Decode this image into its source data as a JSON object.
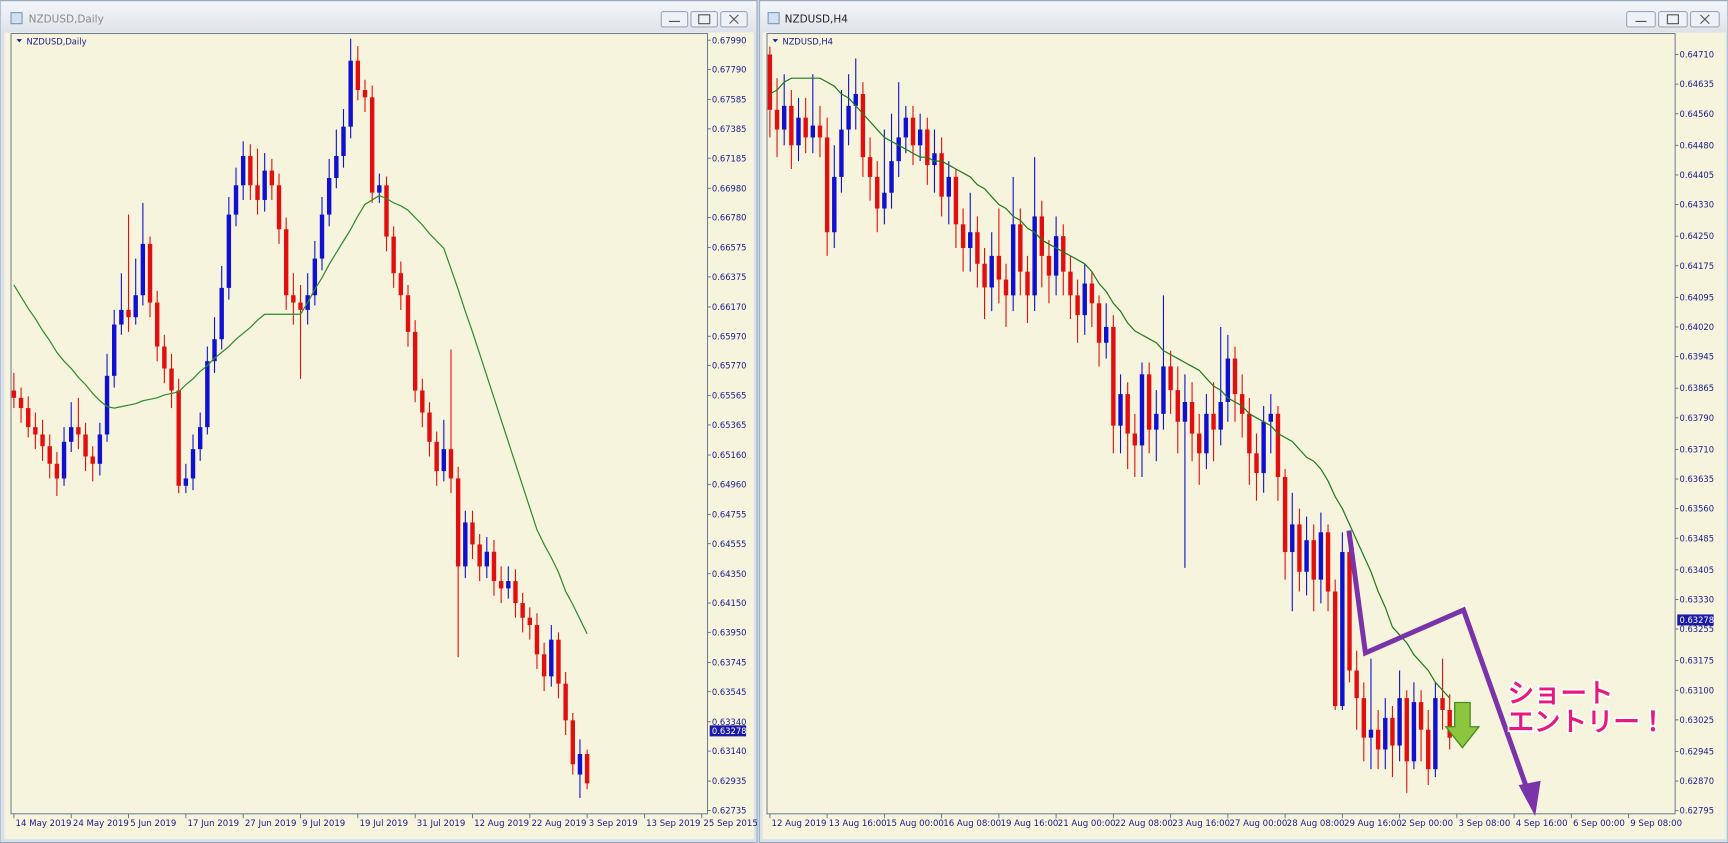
{
  "windows": [
    {
      "title": "NZDUSD,Daily"
    },
    {
      "title": "NZDUSD,H4"
    }
  ],
  "chart_data": [
    {
      "type": "candlestick",
      "title": "NZDUSD,Daily",
      "up_color": "#1010d0",
      "down_color": "#e01010",
      "ma_color": "#2e8b2e",
      "xlim": [
        -0.4,
        96.8
      ],
      "xticks": [
        {
          "value": 0,
          "label": "14 May 2019"
        },
        {
          "value": 8,
          "label": "24 May 2019"
        },
        {
          "value": 16,
          "label": "5 Jun 2019"
        },
        {
          "value": 24,
          "label": "17 Jun 2019"
        },
        {
          "value": 32,
          "label": "27 Jun 2019"
        },
        {
          "value": 40,
          "label": "9 Jul 2019"
        },
        {
          "value": 48,
          "label": "19 Jul 2019"
        },
        {
          "value": 56,
          "label": "31 Jul 2019"
        },
        {
          "value": 64,
          "label": "12 Aug 2019"
        },
        {
          "value": 72,
          "label": "22 Aug 2019"
        },
        {
          "value": 80,
          "label": "3 Sep 2019"
        },
        {
          "value": 88,
          "label": "13 Sep 2019"
        },
        {
          "value": 96,
          "label": "25 Sep 2015"
        }
      ],
      "ylim": [
        0.62712,
        0.68035
      ],
      "yticks": [
        {
          "value": 0.6799,
          "label": "0.67990"
        },
        {
          "value": 0.6779,
          "label": "0.67790"
        },
        0.67585,
        0.67385,
        0.67185,
        {
          "value": 0.6698,
          "label": "0.66980"
        },
        {
          "value": 0.6678,
          "label": "0.66780"
        },
        0.66575,
        0.66375,
        {
          "value": 0.6617,
          "label": "0.66170"
        },
        {
          "value": 0.6597,
          "label": "0.65970"
        },
        {
          "value": 0.6577,
          "label": "0.65770"
        },
        0.65565,
        0.65365,
        {
          "value": 0.6516,
          "label": "0.65160"
        },
        {
          "value": 0.6496,
          "label": "0.64960"
        },
        0.64755,
        0.64555,
        {
          "value": 0.6435,
          "label": "0.64350"
        },
        {
          "value": 0.6415,
          "label": "0.64150"
        },
        {
          "value": 0.6395,
          "label": "0.63950"
        },
        0.63745,
        0.63545,
        {
          "value": 0.6334,
          "label": "0.63340"
        },
        {
          "value": 0.6314,
          "label": "0.63140"
        },
        0.62935,
        0.62735
      ],
      "current_price": 0.63278,
      "open": [
        0.656,
        0.6555,
        0.6548,
        0.6535,
        0.653,
        0.6522,
        0.651,
        0.65,
        0.6525,
        0.6535,
        0.653,
        0.6515,
        0.651,
        0.653,
        0.657,
        0.6605,
        0.6615,
        0.661,
        0.6625,
        0.666,
        0.662,
        0.659,
        0.6575,
        0.656,
        0.6495,
        0.65,
        0.652,
        0.6535,
        0.658,
        0.6595,
        0.663,
        0.668,
        0.67,
        0.672,
        0.67,
        0.669,
        0.671,
        0.67,
        0.667,
        0.6625,
        0.662,
        0.6615,
        0.6625,
        0.665,
        0.668,
        0.6705,
        0.672,
        0.674,
        0.6785,
        0.6765,
        0.676,
        0.6695,
        0.67,
        0.6665,
        0.664,
        0.6625,
        0.66,
        0.656,
        0.6545,
        0.6525,
        0.6505,
        0.652,
        0.65,
        0.644,
        0.647,
        0.6455,
        0.644,
        0.645,
        0.643,
        0.6425,
        0.643,
        0.6415,
        0.6405,
        0.64,
        0.638,
        0.6365,
        0.639,
        0.636,
        0.6335,
        0.6298,
        0.6312
      ],
      "high": [
        0.6572,
        0.6562,
        0.6556,
        0.6545,
        0.654,
        0.653,
        0.6518,
        0.6535,
        0.6552,
        0.6555,
        0.6538,
        0.6522,
        0.6538,
        0.6585,
        0.6615,
        0.664,
        0.668,
        0.665,
        0.6688,
        0.6665,
        0.6628,
        0.6598,
        0.6585,
        0.6568,
        0.651,
        0.653,
        0.6545,
        0.659,
        0.661,
        0.6645,
        0.6692,
        0.6712,
        0.673,
        0.6728,
        0.6725,
        0.6722,
        0.6718,
        0.6708,
        0.6678,
        0.664,
        0.6632,
        0.664,
        0.6662,
        0.6692,
        0.6718,
        0.6738,
        0.6752,
        0.68,
        0.6795,
        0.6772,
        0.6768,
        0.6708,
        0.6706,
        0.6672,
        0.6648,
        0.6632,
        0.6608,
        0.6568,
        0.6552,
        0.6532,
        0.654,
        0.6588,
        0.6508,
        0.6478,
        0.6478,
        0.6462,
        0.646,
        0.6458,
        0.644,
        0.644,
        0.6438,
        0.6422,
        0.6412,
        0.6408,
        0.6388,
        0.64,
        0.6395,
        0.6368,
        0.634,
        0.6322,
        0.6315
      ],
      "low": [
        0.6548,
        0.6538,
        0.6528,
        0.652,
        0.6512,
        0.65,
        0.6488,
        0.6495,
        0.6518,
        0.652,
        0.6505,
        0.6498,
        0.6502,
        0.6525,
        0.6562,
        0.6598,
        0.66,
        0.6605,
        0.6618,
        0.661,
        0.658,
        0.6565,
        0.6548,
        0.649,
        0.649,
        0.6492,
        0.6512,
        0.653,
        0.6572,
        0.6588,
        0.6622,
        0.6672,
        0.669,
        0.669,
        0.668,
        0.6682,
        0.669,
        0.666,
        0.6615,
        0.6605,
        0.6568,
        0.6605,
        0.6618,
        0.6642,
        0.6672,
        0.6698,
        0.6712,
        0.6732,
        0.6758,
        0.675,
        0.6688,
        0.6688,
        0.6655,
        0.663,
        0.6615,
        0.659,
        0.6552,
        0.6535,
        0.6515,
        0.6495,
        0.6498,
        0.649,
        0.6378,
        0.6432,
        0.6445,
        0.643,
        0.6432,
        0.642,
        0.6415,
        0.6418,
        0.6405,
        0.6395,
        0.639,
        0.637,
        0.6355,
        0.6358,
        0.635,
        0.6325,
        0.6298,
        0.6282,
        0.6288
      ],
      "close": [
        0.6555,
        0.6548,
        0.6535,
        0.653,
        0.6522,
        0.651,
        0.65,
        0.6525,
        0.6535,
        0.653,
        0.6515,
        0.651,
        0.653,
        0.657,
        0.6605,
        0.6615,
        0.661,
        0.6625,
        0.666,
        0.662,
        0.659,
        0.6575,
        0.656,
        0.6495,
        0.65,
        0.652,
        0.6535,
        0.658,
        0.6595,
        0.663,
        0.668,
        0.67,
        0.672,
        0.67,
        0.669,
        0.671,
        0.67,
        0.667,
        0.6625,
        0.662,
        0.6615,
        0.6625,
        0.665,
        0.668,
        0.6705,
        0.672,
        0.674,
        0.6785,
        0.6765,
        0.676,
        0.6695,
        0.67,
        0.6665,
        0.664,
        0.6625,
        0.66,
        0.656,
        0.6545,
        0.6525,
        0.6505,
        0.652,
        0.65,
        0.644,
        0.647,
        0.6455,
        0.644,
        0.645,
        0.643,
        0.6425,
        0.643,
        0.6415,
        0.6405,
        0.64,
        0.638,
        0.6365,
        0.639,
        0.636,
        0.6335,
        0.6305,
        0.6312,
        0.6292
      ],
      "ma_values": [
        0.6632,
        0.6624,
        0.6616,
        0.6609,
        0.6601,
        0.6594,
        0.6586,
        0.658,
        0.6575,
        0.6569,
        0.6564,
        0.6558,
        0.6553,
        0.6549,
        0.6548,
        0.6549,
        0.655,
        0.6551,
        0.6553,
        0.6554,
        0.6555,
        0.6557,
        0.6558,
        0.6559,
        0.6564,
        0.6568,
        0.6573,
        0.6577,
        0.6582,
        0.6586,
        0.659,
        0.6595,
        0.6599,
        0.6603,
        0.6608,
        0.6612,
        0.6612,
        0.6612,
        0.6612,
        0.6612,
        0.6612,
        0.662,
        0.6629,
        0.6637,
        0.6646,
        0.6654,
        0.6662,
        0.667,
        0.6679,
        0.6687,
        0.669,
        0.6693,
        0.6691,
        0.6688,
        0.6686,
        0.6683,
        0.6678,
        0.6673,
        0.6667,
        0.6662,
        0.6657,
        0.6643,
        0.6629,
        0.6614,
        0.66,
        0.6585,
        0.657,
        0.6555,
        0.654,
        0.6525,
        0.651,
        0.6495,
        0.648,
        0.6465,
        0.6455,
        0.6446,
        0.6436,
        0.6423,
        0.6414,
        0.6404,
        0.6394
      ]
    },
    {
      "type": "candlestick",
      "title": "NZDUSD,H4",
      "up_color": "#1010d0",
      "down_color": "#e01010",
      "ma_color": "#1f7a1f",
      "xlim": [
        -0.4,
        126.5
      ],
      "xticks": [
        {
          "value": 0,
          "label": "12 Aug 2019"
        },
        {
          "value": 8,
          "label": "13 Aug 16:00"
        },
        {
          "value": 16,
          "label": "15 Aug 00:00"
        },
        {
          "value": 24,
          "label": "16 Aug 08:00"
        },
        {
          "value": 32,
          "label": "19 Aug 16:00"
        },
        {
          "value": 40,
          "label": "21 Aug 00:00"
        },
        {
          "value": 48,
          "label": "22 Aug 08:00"
        },
        {
          "value": 56,
          "label": "23 Aug 16:00"
        },
        {
          "value": 64,
          "label": "27 Aug 00:00"
        },
        {
          "value": 72,
          "label": "28 Aug 08:00"
        },
        {
          "value": 80,
          "label": "29 Aug 16:00"
        },
        {
          "value": 88,
          "label": "2 Sep 00:00"
        },
        {
          "value": 96,
          "label": "3 Sep 08:00"
        },
        {
          "value": 104,
          "label": "4 Sep 16:00"
        },
        {
          "value": 112,
          "label": "6 Sep 00:00"
        },
        {
          "value": 120,
          "label": "9 Sep 08:00"
        }
      ],
      "ylim": [
        0.62787,
        0.64763
      ],
      "yticks": [
        {
          "value": 0.6471,
          "label": "0.64710"
        },
        0.64635,
        {
          "value": 0.6456,
          "label": "0.64560"
        },
        {
          "value": 0.6448,
          "label": "0.64480"
        },
        0.64405,
        {
          "value": 0.6433,
          "label": "0.64330"
        },
        {
          "value": 0.6425,
          "label": "0.64250"
        },
        0.64175,
        0.64095,
        {
          "value": 0.6402,
          "label": "0.64020"
        },
        0.63945,
        0.63865,
        {
          "value": 0.6379,
          "label": "0.63790"
        },
        {
          "value": 0.6371,
          "label": "0.63710"
        },
        0.63635,
        {
          "value": 0.6356,
          "label": "0.63560"
        },
        0.63485,
        0.63405,
        {
          "value": 0.6333,
          "label": "0.63330"
        },
        0.63255,
        0.63175,
        {
          "value": 0.631,
          "label": "0.63100"
        },
        0.63025,
        0.62945,
        {
          "value": 0.6287,
          "label": "0.62870"
        },
        0.62795
      ],
      "current_price": 0.63278,
      "annotation": [
        "ショート",
        "エントリー！"
      ],
      "open": [
        0.6471,
        0.6457,
        0.6452,
        0.6458,
        0.6448,
        0.6455,
        0.645,
        0.6453,
        0.645,
        0.6426,
        0.644,
        0.6452,
        0.6458,
        0.6461,
        0.6445,
        0.644,
        0.6432,
        0.6436,
        0.6444,
        0.645,
        0.6455,
        0.6448,
        0.6452,
        0.6443,
        0.6446,
        0.6435,
        0.644,
        0.6428,
        0.6422,
        0.6426,
        0.6418,
        0.6412,
        0.642,
        0.6414,
        0.641,
        0.6428,
        0.6416,
        0.641,
        0.643,
        0.642,
        0.6415,
        0.6425,
        0.6416,
        0.641,
        0.6405,
        0.6413,
        0.6408,
        0.6398,
        0.6402,
        0.6377,
        0.6385,
        0.6375,
        0.6372,
        0.639,
        0.6376,
        0.638,
        0.6392,
        0.6386,
        0.6378,
        0.6383,
        0.6375,
        0.637,
        0.638,
        0.6376,
        0.6383,
        0.6394,
        0.6385,
        0.638,
        0.637,
        0.6365,
        0.6378,
        0.638,
        0.6364,
        0.6345,
        0.6352,
        0.634,
        0.6348,
        0.6338,
        0.635,
        0.6335,
        0.6306,
        0.6345,
        0.6315,
        0.6308,
        0.6298,
        0.63,
        0.6295,
        0.6303,
        0.6296,
        0.6308,
        0.6292,
        0.6307,
        0.63,
        0.629,
        0.6308,
        0.6305
      ],
      "high": [
        0.6473,
        0.6465,
        0.6466,
        0.6462,
        0.646,
        0.646,
        0.6466,
        0.6458,
        0.6455,
        0.6448,
        0.6462,
        0.6466,
        0.647,
        0.6464,
        0.645,
        0.6444,
        0.6452,
        0.6456,
        0.6464,
        0.6458,
        0.6458,
        0.6456,
        0.6455,
        0.6452,
        0.645,
        0.6444,
        0.6442,
        0.6432,
        0.6436,
        0.643,
        0.6422,
        0.6426,
        0.6432,
        0.6418,
        0.644,
        0.6432,
        0.642,
        0.6445,
        0.6434,
        0.6424,
        0.643,
        0.6428,
        0.642,
        0.6414,
        0.6418,
        0.6416,
        0.641,
        0.6408,
        0.6405,
        0.639,
        0.6388,
        0.638,
        0.6393,
        0.6393,
        0.6386,
        0.641,
        0.6396,
        0.6392,
        0.639,
        0.6388,
        0.638,
        0.6385,
        0.6388,
        0.6402,
        0.64,
        0.6397,
        0.639,
        0.6384,
        0.6375,
        0.6382,
        0.6385,
        0.6382,
        0.6366,
        0.636,
        0.6356,
        0.6354,
        0.6352,
        0.6355,
        0.6352,
        0.6338,
        0.635,
        0.6348,
        0.632,
        0.6312,
        0.6318,
        0.6305,
        0.6308,
        0.6306,
        0.6315,
        0.631,
        0.6312,
        0.631,
        0.6305,
        0.6312,
        0.6318,
        0.6309
      ],
      "low": [
        0.645,
        0.6445,
        0.6448,
        0.6442,
        0.6444,
        0.6446,
        0.6446,
        0.6445,
        0.642,
        0.6422,
        0.6436,
        0.6448,
        0.6452,
        0.644,
        0.6434,
        0.6426,
        0.6428,
        0.6432,
        0.644,
        0.6446,
        0.6443,
        0.6444,
        0.6438,
        0.6436,
        0.643,
        0.6428,
        0.6422,
        0.6416,
        0.6416,
        0.6412,
        0.6404,
        0.6406,
        0.6408,
        0.6402,
        0.6406,
        0.641,
        0.6403,
        0.6406,
        0.6412,
        0.6408,
        0.641,
        0.641,
        0.6404,
        0.6398,
        0.64,
        0.6402,
        0.6392,
        0.6394,
        0.637,
        0.637,
        0.6366,
        0.6364,
        0.6364,
        0.637,
        0.6368,
        0.6376,
        0.638,
        0.637,
        0.6341,
        0.6368,
        0.6362,
        0.6366,
        0.6368,
        0.6372,
        0.6378,
        0.6378,
        0.6374,
        0.6362,
        0.6358,
        0.636,
        0.637,
        0.6358,
        0.6338,
        0.633,
        0.6335,
        0.6334,
        0.633,
        0.6332,
        0.633,
        0.6305,
        0.6305,
        0.6312,
        0.63,
        0.6292,
        0.629,
        0.629,
        0.629,
        0.6288,
        0.6292,
        0.6284,
        0.629,
        0.6292,
        0.6286,
        0.6288,
        0.63,
        0.6295
      ],
      "close": [
        0.6457,
        0.6452,
        0.6458,
        0.6448,
        0.6455,
        0.645,
        0.6453,
        0.645,
        0.6426,
        0.644,
        0.6452,
        0.6458,
        0.6461,
        0.6445,
        0.644,
        0.6432,
        0.6436,
        0.6444,
        0.645,
        0.6455,
        0.6448,
        0.6452,
        0.6443,
        0.6446,
        0.6435,
        0.644,
        0.6428,
        0.6422,
        0.6426,
        0.6418,
        0.6412,
        0.642,
        0.6414,
        0.641,
        0.6428,
        0.6416,
        0.641,
        0.643,
        0.642,
        0.6415,
        0.6425,
        0.6416,
        0.641,
        0.6405,
        0.6413,
        0.6408,
        0.6398,
        0.6402,
        0.6377,
        0.6385,
        0.6375,
        0.6372,
        0.639,
        0.6376,
        0.638,
        0.6392,
        0.6386,
        0.6378,
        0.6383,
        0.6375,
        0.637,
        0.638,
        0.6376,
        0.6383,
        0.6394,
        0.6385,
        0.638,
        0.637,
        0.6365,
        0.6378,
        0.638,
        0.6364,
        0.6345,
        0.6352,
        0.634,
        0.6348,
        0.6338,
        0.635,
        0.6335,
        0.6306,
        0.6345,
        0.6315,
        0.6308,
        0.6298,
        0.63,
        0.6295,
        0.6303,
        0.6296,
        0.6308,
        0.6292,
        0.6307,
        0.63,
        0.629,
        0.6308,
        0.6305,
        0.6298
      ],
      "ma_values": [
        0.6461,
        0.6462,
        0.6464,
        0.6465,
        0.6465,
        0.6465,
        0.6465,
        0.6465,
        0.6464,
        0.6463,
        0.6461,
        0.646,
        0.6458,
        0.6456,
        0.6454,
        0.6452,
        0.645,
        0.6449,
        0.6448,
        0.6447,
        0.6446,
        0.6445,
        0.6445,
        0.6444,
        0.6444,
        0.6443,
        0.6442,
        0.6441,
        0.644,
        0.6438,
        0.6437,
        0.6435,
        0.6433,
        0.6432,
        0.643,
        0.6429,
        0.6427,
        0.6426,
        0.6424,
        0.6423,
        0.6422,
        0.6421,
        0.642,
        0.6419,
        0.6418,
        0.6416,
        0.6413,
        0.6411,
        0.6408,
        0.6406,
        0.6403,
        0.6401,
        0.64,
        0.6399,
        0.6398,
        0.6396,
        0.6395,
        0.6394,
        0.6393,
        0.6392,
        0.6391,
        0.6389,
        0.6387,
        0.6386,
        0.6384,
        0.6383,
        0.6382,
        0.638,
        0.6379,
        0.6378,
        0.6377,
        0.6375,
        0.6374,
        0.6373,
        0.6371,
        0.6369,
        0.6368,
        0.6366,
        0.6363,
        0.6359,
        0.6356,
        0.6352,
        0.6348,
        0.6344,
        0.634,
        0.6335,
        0.6331,
        0.6326,
        0.6324,
        0.6322,
        0.6319,
        0.6317,
        0.6315,
        0.6312,
        0.631,
        0.6308
      ]
    }
  ]
}
